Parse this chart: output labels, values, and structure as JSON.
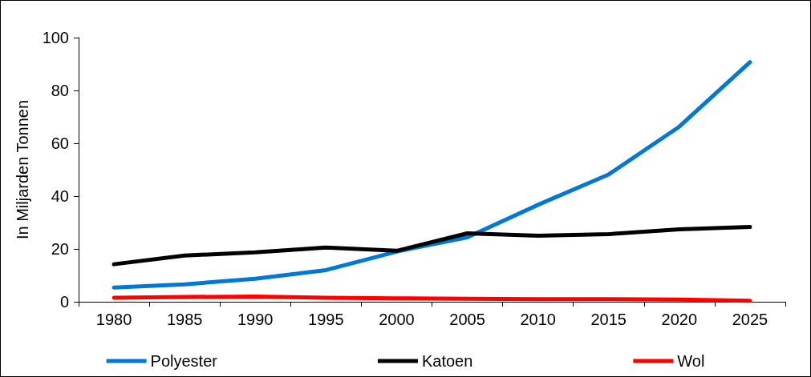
{
  "chart_data": {
    "type": "line",
    "ylabel": "In Miljarden Tonnen",
    "categories": [
      "1980",
      "1985",
      "1990",
      "1995",
      "2000",
      "2005",
      "2010",
      "2015",
      "2020",
      "2025"
    ],
    "series": [
      {
        "name": "Polyester",
        "color": "#0078d4",
        "values": [
          5.4,
          6.6,
          8.7,
          12,
          19,
          24.4,
          36.7,
          48.2,
          66.3,
          90.7
        ]
      },
      {
        "name": "Katoen",
        "color": "#000000",
        "values": [
          14.2,
          17.5,
          18.7,
          20.5,
          19.3,
          25.9,
          25,
          25.6,
          27.4,
          28.3
        ]
      },
      {
        "name": "Wol",
        "color": "#ff0000",
        "values": [
          1.5,
          1.8,
          2,
          1.5,
          1.3,
          1.1,
          1,
          1,
          0.8,
          0.4
        ]
      }
    ],
    "ylim": [
      0,
      100
    ],
    "yticks": [
      0,
      20,
      40,
      60,
      80,
      100
    ],
    "grid": false,
    "legend": "bottom",
    "marker": "none",
    "line_style": "solid"
  }
}
